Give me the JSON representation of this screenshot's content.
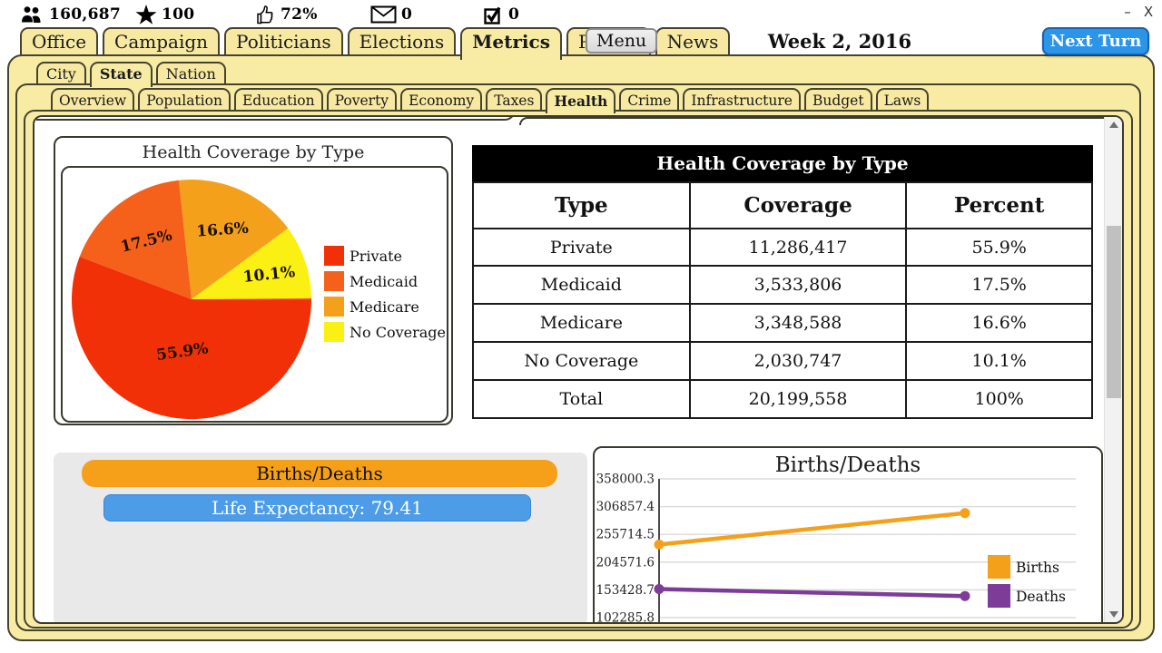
{
  "window": {
    "minimize": "–",
    "close": "X"
  },
  "topbar": {
    "stats": [
      {
        "icon": "population-icon",
        "value": "160,687"
      },
      {
        "icon": "star-icon",
        "value": "100"
      },
      {
        "icon": "approval-icon",
        "value": "72%"
      },
      {
        "icon": "mail-icon",
        "value": "0"
      },
      {
        "icon": "tasks-icon",
        "value": "0"
      }
    ]
  },
  "nav": {
    "main_tabs": [
      "Office",
      "Campaign",
      "Politicians",
      "Elections",
      "Metrics",
      "Profile",
      "News"
    ],
    "main_active": "Metrics",
    "menu_label": "Menu",
    "date": "Week 2, 2016",
    "next_turn_label": "Next Turn",
    "level_tabs": [
      "City",
      "State",
      "Nation"
    ],
    "level_active": "State",
    "metric_tabs": [
      "Overview",
      "Population",
      "Education",
      "Poverty",
      "Economy",
      "Taxes",
      "Health",
      "Crime",
      "Infrastructure",
      "Budget",
      "Laws"
    ],
    "metric_active": "Health"
  },
  "pie_panel": {
    "title": "Health Coverage by Type"
  },
  "coverage_table": {
    "title": "Health Coverage by Type",
    "columns": [
      "Type",
      "Coverage",
      "Percent"
    ],
    "rows": [
      [
        "Private",
        "11,286,417",
        "55.9%"
      ],
      [
        "Medicaid",
        "3,533,806",
        "17.5%"
      ],
      [
        "Medicare",
        "3,348,588",
        "16.6%"
      ],
      [
        "No Coverage",
        "2,030,747",
        "10.1%"
      ],
      [
        "Total",
        "20,199,558",
        "100%"
      ]
    ]
  },
  "births_deaths": {
    "header": "Births/Deaths",
    "life_expectancy": "Life Expectancy: 79.41"
  },
  "chart_data": [
    {
      "type": "pie",
      "title": "Health Coverage by Type",
      "labels": [
        "Private",
        "Medicaid",
        "Medicare",
        "No Coverage"
      ],
      "values": [
        55.9,
        17.5,
        16.6,
        10.1
      ],
      "display_labels": [
        "55.9%",
        "17.5%",
        "16.6%",
        "10.1%"
      ],
      "colors": [
        "#f23008",
        "#f5611b",
        "#f5a01b",
        "#fbf013"
      ],
      "legend_position": "right"
    },
    {
      "type": "line",
      "title": "Births/Deaths",
      "x": [
        1,
        2
      ],
      "series": [
        {
          "name": "Births",
          "color": "#f5a01b",
          "values": [
            237000,
            295000
          ]
        },
        {
          "name": "Deaths",
          "color": "#7d3c98",
          "values": [
            155000,
            142000
          ]
        }
      ],
      "y_ticks": [
        "358000.3",
        "306857.4",
        "255714.5",
        "204571.6",
        "153428.7",
        "102285.8"
      ],
      "ylim": [
        102285.8,
        358000.3
      ],
      "grid": true,
      "legend_position": "right"
    }
  ]
}
